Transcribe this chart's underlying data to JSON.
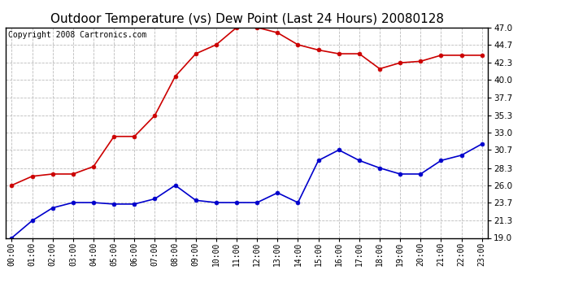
{
  "title": "Outdoor Temperature (vs) Dew Point (Last 24 Hours) 20080128",
  "copyright": "Copyright 2008 Cartronics.com",
  "hours": [
    "00:00",
    "01:00",
    "02:00",
    "03:00",
    "04:00",
    "05:00",
    "06:00",
    "07:00",
    "08:00",
    "09:00",
    "10:00",
    "11:00",
    "12:00",
    "13:00",
    "14:00",
    "15:00",
    "16:00",
    "17:00",
    "18:00",
    "19:00",
    "20:00",
    "21:00",
    "22:00",
    "23:00"
  ],
  "temp": [
    26.0,
    27.2,
    27.5,
    27.5,
    28.5,
    32.5,
    32.5,
    35.3,
    40.5,
    43.5,
    44.7,
    47.0,
    47.0,
    46.3,
    44.7,
    44.0,
    43.5,
    43.5,
    41.5,
    42.3,
    42.5,
    43.3,
    43.3,
    43.3
  ],
  "dew": [
    19.0,
    21.3,
    23.0,
    23.7,
    23.7,
    23.5,
    23.5,
    24.2,
    26.0,
    24.0,
    23.7,
    23.7,
    23.7,
    25.0,
    23.7,
    29.3,
    30.7,
    29.3,
    28.3,
    27.5,
    27.5,
    29.3,
    30.0,
    31.5
  ],
  "temp_color": "#cc0000",
  "dew_color": "#0000cc",
  "bg_color": "#ffffff",
  "plot_bg_color": "#ffffff",
  "grid_color": "#bbbbbb",
  "ylim": [
    19.0,
    47.0
  ],
  "yticks": [
    19.0,
    21.3,
    23.7,
    26.0,
    28.3,
    30.7,
    33.0,
    35.3,
    37.7,
    40.0,
    42.3,
    44.7,
    47.0
  ],
  "title_fontsize": 11,
  "copyright_fontsize": 7,
  "tick_fontsize": 7.5,
  "xtick_fontsize": 7
}
